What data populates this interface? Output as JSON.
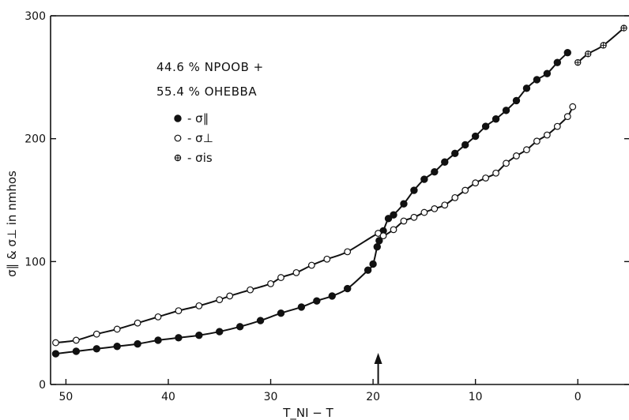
{
  "chart_data": {
    "type": "scatter",
    "xlabel": "T_NI − T",
    "ylabel": "σ∥ & σ⊥ in nmhos",
    "xlim": [
      51.5,
      -5.0
    ],
    "ylim": [
      0,
      300
    ],
    "x_ticks": [
      50,
      40,
      30,
      20,
      10,
      0
    ],
    "y_ticks": [
      0,
      100,
      200,
      300
    ],
    "annotation": [
      "44.6 % NPOOB +",
      "55.4 % OHEBBA"
    ],
    "legend_position": "top-left",
    "arrow_at_x": 19.5,
    "series": [
      {
        "name": "- σ∥",
        "marker": "filled-circle",
        "points": [
          [
            51,
            25
          ],
          [
            49,
            27
          ],
          [
            47,
            29
          ],
          [
            45,
            31
          ],
          [
            43,
            33
          ],
          [
            41,
            36
          ],
          [
            39,
            38
          ],
          [
            37,
            40
          ],
          [
            35,
            43
          ],
          [
            33,
            47
          ],
          [
            31,
            52
          ],
          [
            29,
            58
          ],
          [
            27,
            63
          ],
          [
            25.5,
            68
          ],
          [
            24,
            72
          ],
          [
            22.5,
            78
          ],
          [
            20.5,
            93
          ],
          [
            20,
            98
          ],
          [
            19.6,
            112
          ],
          [
            19.4,
            117
          ],
          [
            19,
            125
          ],
          [
            18.5,
            135
          ],
          [
            18,
            138
          ],
          [
            17,
            147
          ],
          [
            16,
            158
          ],
          [
            15,
            167
          ],
          [
            14,
            173
          ],
          [
            13,
            181
          ],
          [
            12,
            188
          ],
          [
            11,
            195
          ],
          [
            10,
            202
          ],
          [
            9,
            210
          ],
          [
            8,
            216
          ],
          [
            7,
            223
          ],
          [
            6,
            231
          ],
          [
            5,
            241
          ],
          [
            4,
            248
          ],
          [
            3,
            253
          ],
          [
            2,
            262
          ],
          [
            1,
            270
          ]
        ]
      },
      {
        "name": "- σ⊥",
        "marker": "open-circle",
        "points": [
          [
            51,
            34
          ],
          [
            49,
            36
          ],
          [
            47,
            41
          ],
          [
            45,
            45
          ],
          [
            43,
            50
          ],
          [
            41,
            55
          ],
          [
            39,
            60
          ],
          [
            37,
            64
          ],
          [
            35,
            69
          ],
          [
            34,
            72
          ],
          [
            32,
            77
          ],
          [
            30,
            82
          ],
          [
            29,
            87
          ],
          [
            27.5,
            91
          ],
          [
            26,
            97
          ],
          [
            24.5,
            102
          ],
          [
            22.5,
            108
          ],
          [
            19.5,
            123
          ],
          [
            19,
            121
          ],
          [
            18,
            126
          ],
          [
            17,
            133
          ],
          [
            16,
            136
          ],
          [
            15,
            140
          ],
          [
            14,
            143
          ],
          [
            13,
            146
          ],
          [
            12,
            152
          ],
          [
            11,
            158
          ],
          [
            10,
            164
          ],
          [
            9,
            168
          ],
          [
            8,
            172
          ],
          [
            7,
            180
          ],
          [
            6,
            186
          ],
          [
            5,
            191
          ],
          [
            4,
            198
          ],
          [
            3,
            203
          ],
          [
            2,
            210
          ],
          [
            1,
            218
          ],
          [
            0.5,
            226
          ]
        ]
      },
      {
        "name": "- σis",
        "marker": "crossed-circle",
        "points": [
          [
            0,
            262
          ],
          [
            -1,
            269
          ],
          [
            -2.5,
            276
          ],
          [
            -4.5,
            290
          ]
        ]
      }
    ]
  }
}
